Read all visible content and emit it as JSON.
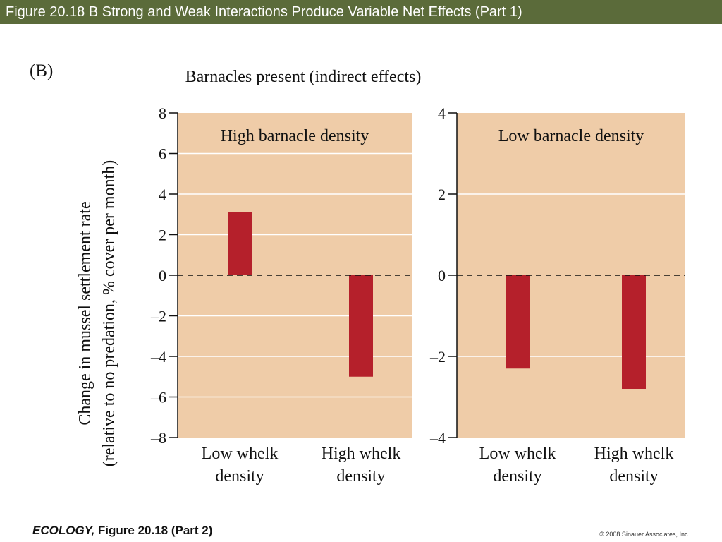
{
  "header": {
    "title": "Figure 20.18 B  Strong and Weak Interactions Produce Variable Net Effects (Part 1)"
  },
  "footer": {
    "book": "ECOLOGY,",
    "figure": " Figure 20.18 (Part 2)",
    "copyright": "© 2008 Sinauer Associates, Inc."
  },
  "figure": {
    "panel_label": "(B)",
    "top_label": "Barnacles present (indirect effects)",
    "ylabel_line1": "Change in mussel settlement rate",
    "ylabel_line2": "(relative to no predation, % cover per month)"
  },
  "colors": {
    "plot_bg": "#efcca8",
    "bar": "#b5202b",
    "title_bar": "#5b6b3a"
  },
  "chart_data": [
    {
      "type": "bar",
      "title": "High barnacle density",
      "categories": [
        "Low whelk density",
        "High whelk density"
      ],
      "category_lines": [
        [
          "Low whelk",
          "density"
        ],
        [
          "High whelk",
          "density"
        ]
      ],
      "values": [
        3.1,
        -5.0
      ],
      "ylim": [
        -8,
        8
      ],
      "yticks": [
        8,
        6,
        4,
        2,
        0,
        -2,
        -4,
        -6,
        -8
      ],
      "ytick_labels": [
        "8",
        "6",
        "4",
        "2",
        "0",
        "–2",
        "–4",
        "–6",
        "–8"
      ],
      "grid": true,
      "zero_line": "dashed"
    },
    {
      "type": "bar",
      "title": "Low barnacle density",
      "categories": [
        "Low whelk density",
        "High whelk density"
      ],
      "category_lines": [
        [
          "Low whelk",
          "density"
        ],
        [
          "High whelk",
          "density"
        ]
      ],
      "values": [
        -2.3,
        -2.8
      ],
      "ylim": [
        -4,
        4
      ],
      "yticks": [
        4,
        2,
        0,
        -2,
        -4
      ],
      "ytick_labels": [
        "4",
        "2",
        "0",
        "–2",
        "–4"
      ],
      "grid": true,
      "zero_line": "dashed"
    }
  ]
}
